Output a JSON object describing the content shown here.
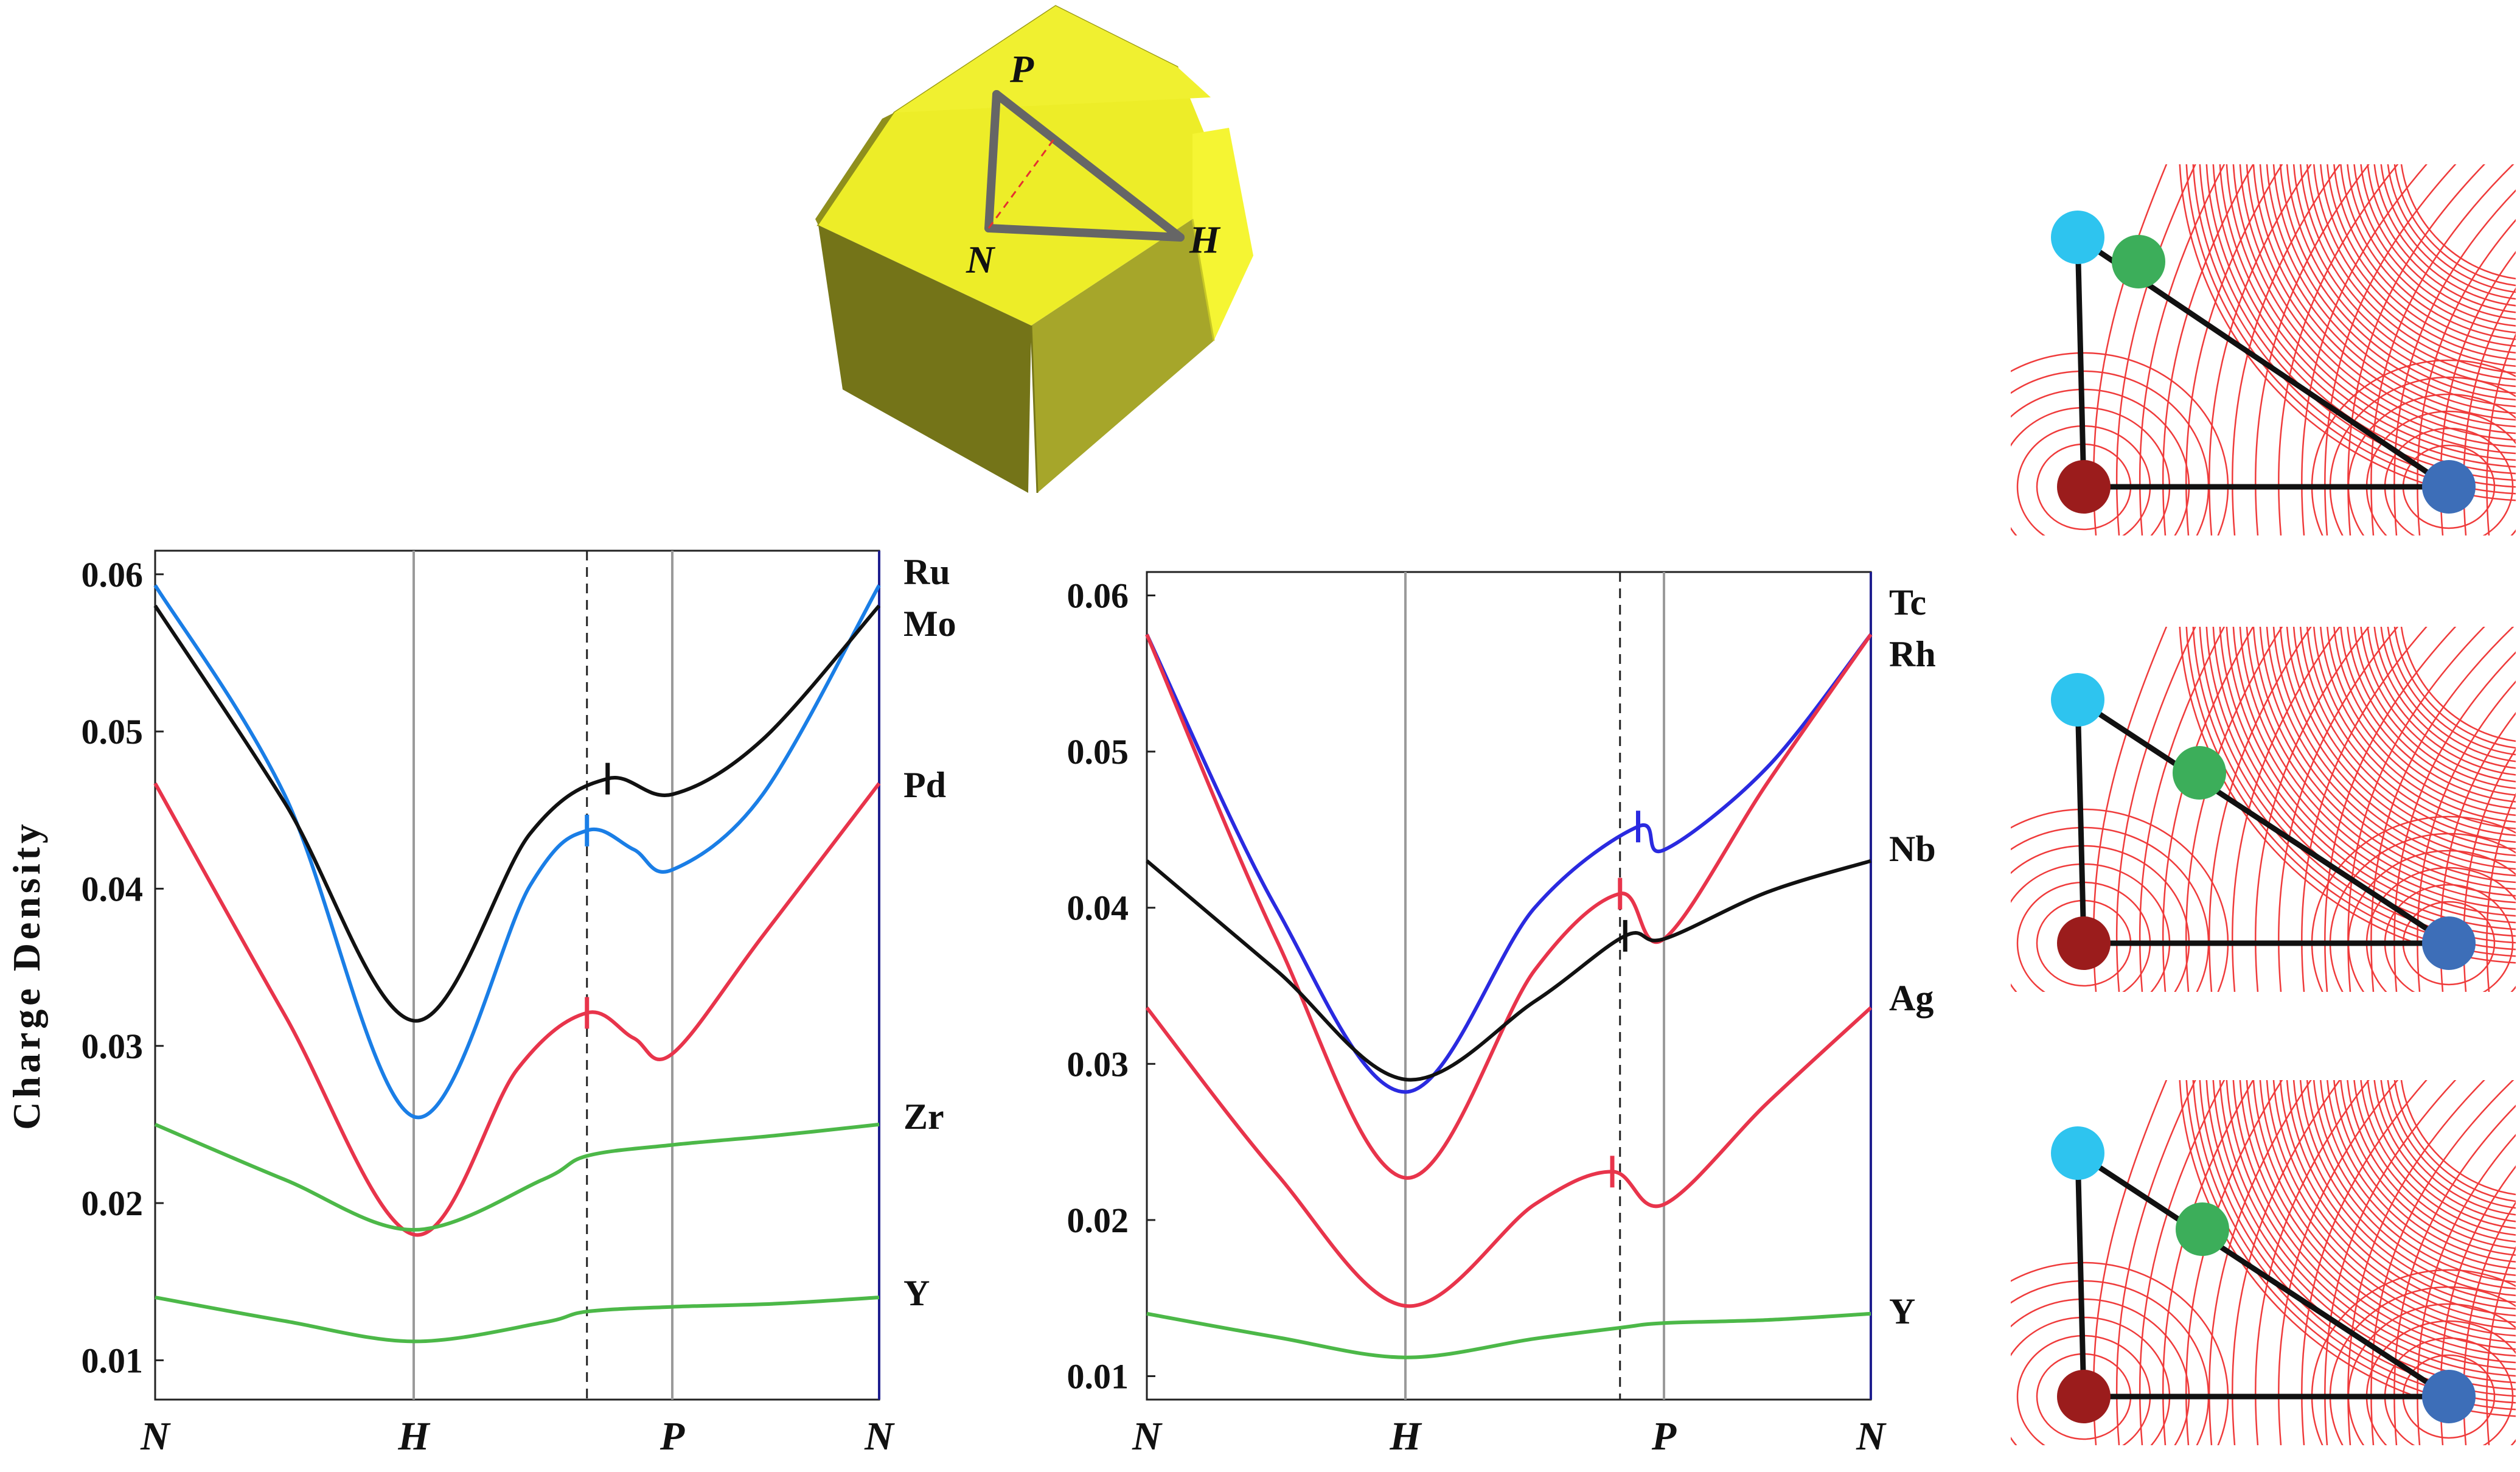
{
  "bz_labels": {
    "P": "P",
    "N": "N",
    "H": "H"
  },
  "chart_data": [
    {
      "type": "line",
      "ylabel": "Charge Density",
      "ylim": [
        0.0075,
        0.0615
      ],
      "yticks": [
        "0.01",
        "0.02",
        "0.03",
        "0.04",
        "0.05",
        "0.06"
      ],
      "xticks": [
        "N",
        "H",
        "P",
        "N"
      ],
      "x_positions": [
        0,
        1,
        2,
        2.8
      ],
      "dashed_x": 1.67,
      "series": [
        {
          "name": "Ru",
          "color": "#1a7ee6",
          "points": [
            [
              0,
              0.0593
            ],
            [
              0.5,
              0.046
            ],
            [
              1,
              0.0255
            ],
            [
              1.45,
              0.0402
            ],
            [
              1.67,
              0.0437
            ],
            [
              1.85,
              0.0425
            ],
            [
              2,
              0.0412
            ],
            [
              2.35,
              0.046
            ],
            [
              2.8,
              0.0593
            ]
          ],
          "tick": 1.67
        },
        {
          "name": "Mo",
          "color": "#111111",
          "points": [
            [
              0,
              0.058
            ],
            [
              0.5,
              0.0455
            ],
            [
              1,
              0.0316
            ],
            [
              1.45,
              0.0435
            ],
            [
              1.75,
              0.047
            ],
            [
              2,
              0.046
            ],
            [
              2.35,
              0.0495
            ],
            [
              2.8,
              0.058
            ]
          ],
          "tick": 1.75
        },
        {
          "name": "Pd",
          "color": "#e8344b",
          "points": [
            [
              0,
              0.0467
            ],
            [
              0.5,
              0.032
            ],
            [
              1,
              0.018
            ],
            [
              1.4,
              0.0285
            ],
            [
              1.67,
              0.0321
            ],
            [
              1.85,
              0.0305
            ],
            [
              2,
              0.0295
            ],
            [
              2.35,
              0.037
            ],
            [
              2.8,
              0.0467
            ]
          ],
          "tick": 1.67
        },
        {
          "name": "Zr",
          "color": "#4cb848",
          "points": [
            [
              0,
              0.025
            ],
            [
              0.5,
              0.0215
            ],
            [
              1,
              0.0183
            ],
            [
              1.5,
              0.0215
            ],
            [
              1.67,
              0.023
            ],
            [
              2,
              0.0237
            ],
            [
              2.4,
              0.0243
            ],
            [
              2.8,
              0.025
            ]
          ],
          "tick": null
        },
        {
          "name": "Y",
          "color": "#4cb848",
          "points": [
            [
              0,
              0.014
            ],
            [
              0.5,
              0.0125
            ],
            [
              1,
              0.0112
            ],
            [
              1.5,
              0.0124
            ],
            [
              1.67,
              0.0131
            ],
            [
              2,
              0.0134
            ],
            [
              2.4,
              0.0136
            ],
            [
              2.8,
              0.014
            ]
          ],
          "tick": null
        }
      ]
    },
    {
      "type": "line",
      "ylabel": "",
      "ylim": [
        0.0085,
        0.0615
      ],
      "yticks": [
        "0.01",
        "0.02",
        "0.03",
        "0.04",
        "0.05",
        "0.06"
      ],
      "xticks": [
        "N",
        "H",
        "P",
        "N"
      ],
      "x_positions": [
        0,
        1,
        2,
        2.8
      ],
      "dashed_x": 1.83,
      "series": [
        {
          "name": "Tc",
          "color": "#2a2ae0",
          "points": [
            [
              0,
              0.0575
            ],
            [
              0.5,
              0.04
            ],
            [
              1,
              0.0282
            ],
            [
              1.5,
              0.04
            ],
            [
              1.9,
              0.0452
            ],
            [
              2,
              0.0437
            ],
            [
              2.4,
              0.049
            ],
            [
              2.8,
              0.0575
            ]
          ],
          "tick": 1.9
        },
        {
          "name": "Rh",
          "color": "#e8344b",
          "points": [
            [
              0,
              0.0575
            ],
            [
              0.5,
              0.038
            ],
            [
              1,
              0.0227
            ],
            [
              1.5,
              0.036
            ],
            [
              1.83,
              0.0409
            ],
            [
              2,
              0.038
            ],
            [
              2.4,
              0.048
            ],
            [
              2.8,
              0.0575
            ]
          ],
          "tick": 1.83
        },
        {
          "name": "Nb",
          "color": "#111111",
          "points": [
            [
              0,
              0.043
            ],
            [
              0.5,
              0.036
            ],
            [
              1,
              0.029
            ],
            [
              1.5,
              0.034
            ],
            [
              1.85,
              0.0382
            ],
            [
              2,
              0.038
            ],
            [
              2.4,
              0.041
            ],
            [
              2.8,
              0.043
            ]
          ],
          "tick": 1.85
        },
        {
          "name": "Ag",
          "color": "#e8344b",
          "points": [
            [
              0,
              0.0336
            ],
            [
              0.5,
              0.023
            ],
            [
              1,
              0.0145
            ],
            [
              1.5,
              0.021
            ],
            [
              1.8,
              0.0231
            ],
            [
              2,
              0.021
            ],
            [
              2.4,
              0.0275
            ],
            [
              2.8,
              0.0336
            ]
          ],
          "tick": 1.8
        },
        {
          "name": "Y",
          "color": "#4cb848",
          "points": [
            [
              0,
              0.014
            ],
            [
              0.5,
              0.0125
            ],
            [
              1,
              0.0112
            ],
            [
              1.5,
              0.0124
            ],
            [
              1.83,
              0.0131
            ],
            [
              2,
              0.0134
            ],
            [
              2.4,
              0.0136
            ],
            [
              2.8,
              0.014
            ]
          ],
          "tick": null
        }
      ]
    }
  ],
  "colors": {
    "yellow_face": "#f2f22a",
    "contour": "#ef3b3b",
    "atom_cyan": "#2ec4ef",
    "atom_green": "#3cae5a",
    "atom_red": "#9b1c1c",
    "atom_blue": "#3d6eb8"
  }
}
